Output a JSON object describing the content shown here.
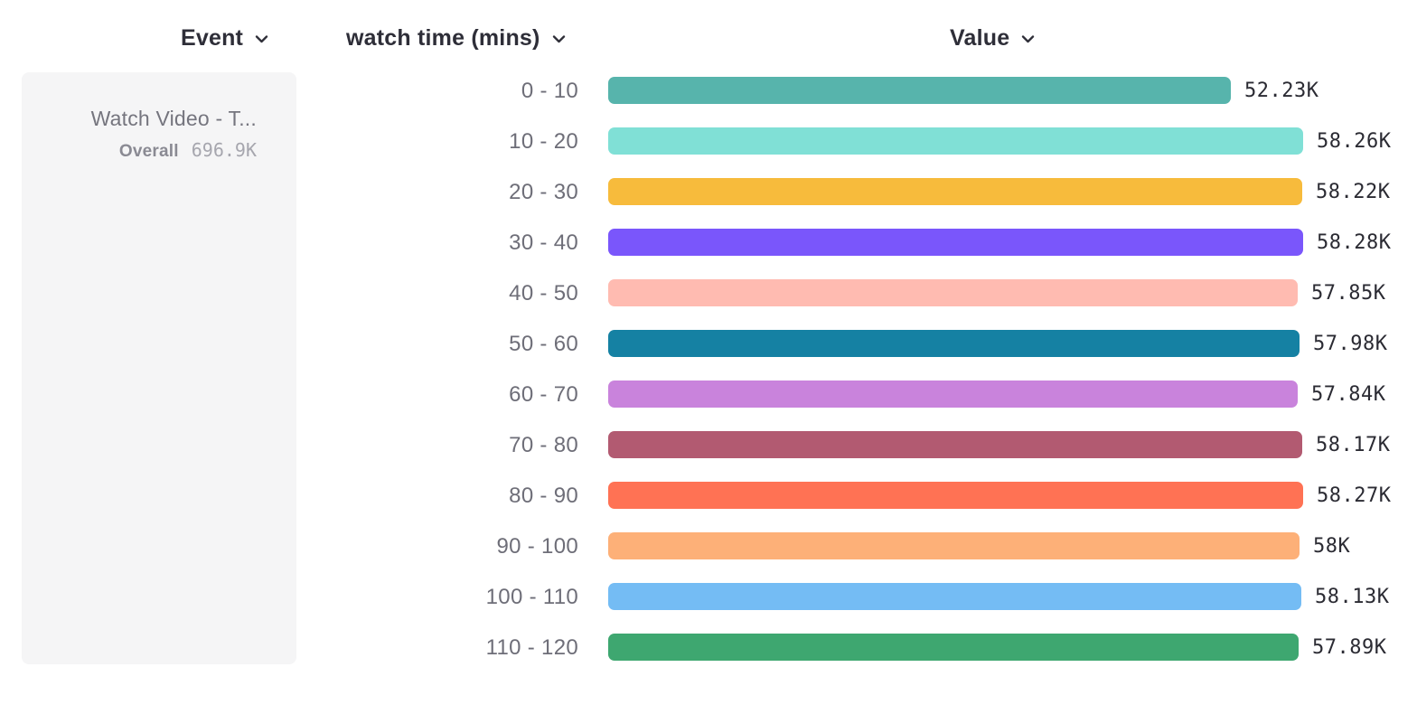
{
  "header": {
    "event_label": "Event",
    "series_label": "watch time (mins)",
    "value_label": "Value"
  },
  "event_panel": {
    "event_name": "Watch Video - T...",
    "overall_label": "Overall",
    "overall_value": "696.9K"
  },
  "chart_data": {
    "type": "bar",
    "orientation": "horizontal",
    "title": "",
    "xlabel": "Value",
    "ylabel": "watch time (mins)",
    "xlim": [
      0,
      58280
    ],
    "grid": false,
    "categories": [
      "0 - 10",
      "10 - 20",
      "20 - 30",
      "30 - 40",
      "40 - 50",
      "50 - 60",
      "60 - 70",
      "70 - 80",
      "80 - 90",
      "90 - 100",
      "100 - 110",
      "110 - 120"
    ],
    "values": [
      52230,
      58260,
      58220,
      58280,
      57850,
      57980,
      57840,
      58170,
      58270,
      58000,
      58130,
      57890
    ],
    "value_labels": [
      "52.23K",
      "58.26K",
      "58.22K",
      "58.28K",
      "57.85K",
      "57.98K",
      "57.84K",
      "58.17K",
      "58.27K",
      "58K",
      "58.13K",
      "57.89K"
    ],
    "colors": [
      "#57B4AC",
      "#80E0D6",
      "#F7BB3C",
      "#7A56FB",
      "#FFBBB1",
      "#1581A3",
      "#C983DC",
      "#B25A71",
      "#FF7254",
      "#FDB078",
      "#74BCF4",
      "#3EA770"
    ]
  }
}
